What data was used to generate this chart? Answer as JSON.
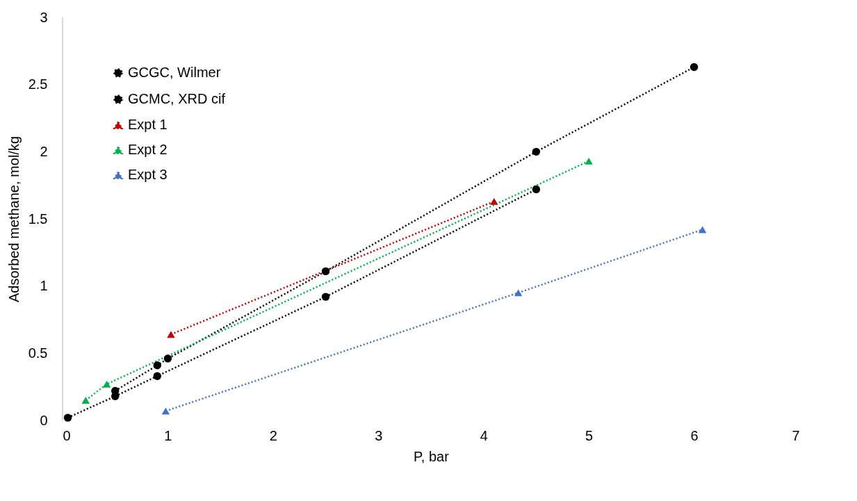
{
  "chart_data": {
    "type": "line",
    "xlabel": "P, bar",
    "ylabel": "Adsorbed methane, mol/kg",
    "xlim": [
      0,
      7
    ],
    "ylim": [
      0,
      3
    ],
    "xticks": [
      0,
      1,
      2,
      3,
      4,
      5,
      6,
      7
    ],
    "yticks": [
      0,
      0.5,
      1,
      1.5,
      2,
      2.5,
      3
    ],
    "grid": false,
    "legend": "top left",
    "line_style": "dotted",
    "series": [
      {
        "name": "GCGC, Wilmer",
        "color": "#000000",
        "marker": "circle",
        "x": [
          0.05,
          0.5,
          0.9,
          2.5,
          4.5
        ],
        "values": [
          0.02,
          0.18,
          0.33,
          0.92,
          1.72
        ]
      },
      {
        "name": "GCMC, XRD cif",
        "color": "#000000",
        "marker": "circle",
        "x": [
          0.5,
          0.9,
          1.0,
          2.5,
          4.5,
          6.0
        ],
        "values": [
          0.22,
          0.41,
          0.46,
          1.11,
          2.0,
          2.63
        ]
      },
      {
        "name": "Expt 1",
        "color": "#c00000",
        "marker": "triangle",
        "x": [
          1.03,
          4.1
        ],
        "values": [
          0.64,
          1.63
        ]
      },
      {
        "name": "Expt 2",
        "color": "#00b050",
        "marker": "triangle",
        "x": [
          0.22,
          0.42,
          5.0
        ],
        "values": [
          0.15,
          0.27,
          1.93
        ]
      },
      {
        "name": "Expt 3",
        "color": "#4472c4",
        "marker": "triangle",
        "x": [
          0.98,
          4.33,
          6.08
        ],
        "values": [
          0.07,
          0.95,
          1.42
        ]
      }
    ]
  }
}
